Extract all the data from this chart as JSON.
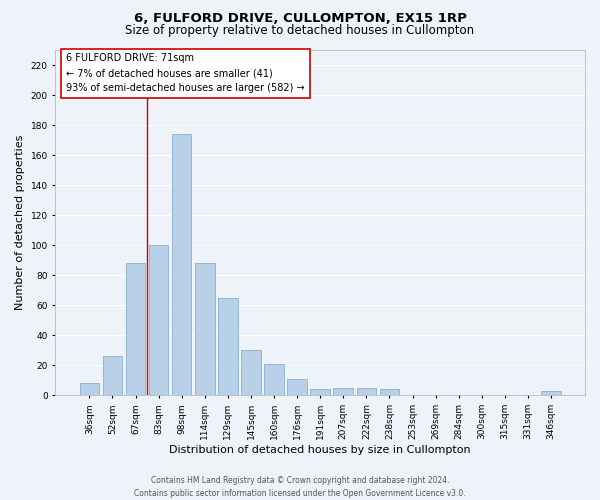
{
  "title": "6, FULFORD DRIVE, CULLOMPTON, EX15 1RP",
  "subtitle": "Size of property relative to detached houses in Cullompton",
  "xlabel": "Distribution of detached houses by size in Cullompton",
  "ylabel": "Number of detached properties",
  "categories": [
    "36sqm",
    "52sqm",
    "67sqm",
    "83sqm",
    "98sqm",
    "114sqm",
    "129sqm",
    "145sqm",
    "160sqm",
    "176sqm",
    "191sqm",
    "207sqm",
    "222sqm",
    "238sqm",
    "253sqm",
    "269sqm",
    "284sqm",
    "300sqm",
    "315sqm",
    "331sqm",
    "346sqm"
  ],
  "values": [
    8,
    26,
    88,
    100,
    174,
    88,
    65,
    30,
    21,
    11,
    4,
    5,
    5,
    4,
    0,
    0,
    0,
    0,
    0,
    0,
    3
  ],
  "bar_color": "#b8d0e8",
  "bar_edge_color": "#8ab0cc",
  "ylim": [
    0,
    230
  ],
  "yticks": [
    0,
    20,
    40,
    60,
    80,
    100,
    120,
    140,
    160,
    180,
    200,
    220
  ],
  "annotation_title": "6 FULFORD DRIVE: 71sqm",
  "annotation_line1": "← 7% of detached houses are smaller (41)",
  "annotation_line2": "93% of semi-detached houses are larger (582) →",
  "annotation_box_color": "#ffffff",
  "annotation_box_edge": "#cc0000",
  "vline_color": "#cc0000",
  "vline_x_bin": 2,
  "footer1": "Contains HM Land Registry data © Crown copyright and database right 2024.",
  "footer2": "Contains public sector information licensed under the Open Government Licence v3.0.",
  "background_color": "#eef2f9",
  "grid_color": "#ffffff",
  "title_fontsize": 9.5,
  "subtitle_fontsize": 8.5,
  "tick_fontsize": 6.5,
  "ylabel_fontsize": 8,
  "xlabel_fontsize": 8,
  "annotation_fontsize": 7,
  "footer_fontsize": 5.5
}
